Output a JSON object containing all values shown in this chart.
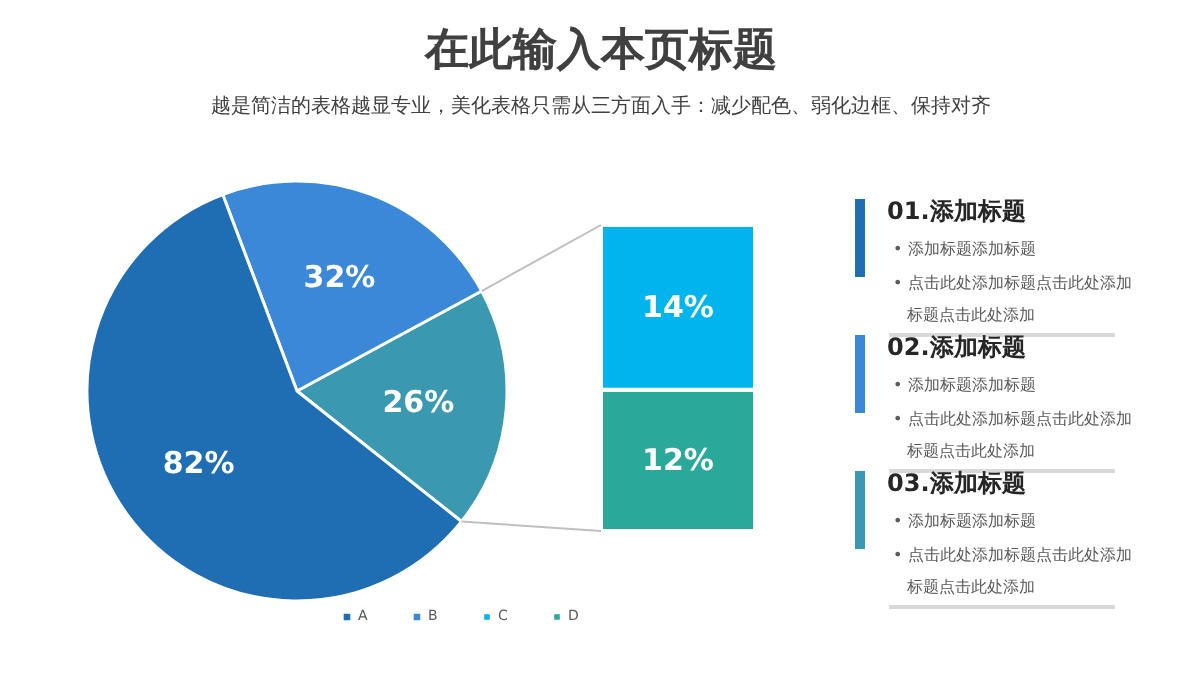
{
  "chart_data": [
    {
      "type": "pie",
      "title": "在此输入本页标题",
      "subtitle": "越是简洁的表格越显专业，美化表格只需从三方面入手：减少配色、弱化边框、保持对齐",
      "categories": [
        "A",
        "B",
        null
      ],
      "values": [
        82,
        32,
        26
      ],
      "colors": [
        "#1f6db3",
        "#3b87d8",
        "#3a98b0"
      ],
      "value_labels": [
        "82%",
        "32%",
        "26%"
      ],
      "legend": "bottom",
      "annotations": [
        "01.添加标题",
        "• 添加标题添加标题",
        "• 点击此处添加标题点击此处添加标题点击此处添加",
        "02.添加标题",
        "• 添加标题添加标题",
        "• 点击此处添加标题点击此处添加标题点击此处添加",
        "03.添加标题",
        "• 添加标题添加标题",
        "• 点击此处添加标题点击此处添加标题点击此处添加"
      ]
    },
    {
      "type": "bar",
      "stacked": true,
      "categories": [
        null
      ],
      "legend": "bottom",
      "series": [
        {
          "name": "D",
          "color": "#2aa89a",
          "values": [
            12
          ],
          "value_labels": [
            "12%"
          ]
        },
        {
          "name": "C",
          "color": "#00b4ee",
          "values": [
            14
          ],
          "value_labels": [
            "14%"
          ]
        }
      ]
    }
  ]
}
